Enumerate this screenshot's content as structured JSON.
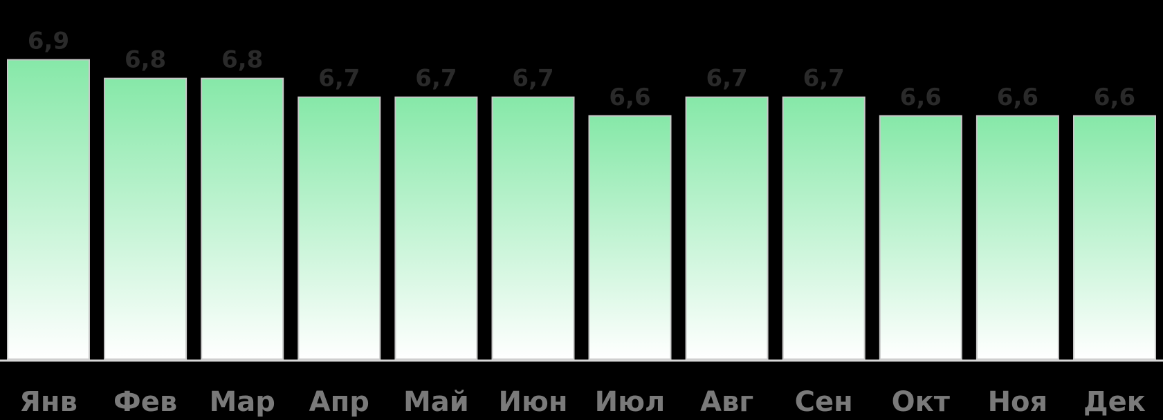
{
  "chart_data": {
    "type": "bar",
    "title": "",
    "xlabel": "",
    "ylabel": "",
    "categories": [
      "Янв",
      "Фев",
      "Мар",
      "Апр",
      "Май",
      "Июн",
      "Июл",
      "Авг",
      "Сен",
      "Окт",
      "Ноя",
      "Дек"
    ],
    "values": [
      6.9,
      6.8,
      6.8,
      6.7,
      6.7,
      6.7,
      6.6,
      6.7,
      6.7,
      6.6,
      6.6,
      6.6
    ],
    "value_labels": [
      "6,9",
      "6,8",
      "6,8",
      "6,7",
      "6,7",
      "6,7",
      "6,6",
      "6,7",
      "6,7",
      "6,6",
      "6,6",
      "6,6"
    ],
    "ylim": [
      5.3,
      6.95
    ],
    "grid": false,
    "legend": "none",
    "colors": {
      "background": "#000000",
      "bar_top": "#86e8a8",
      "bar_bottom": "#ffffff",
      "bar_outline": "#c8c8c8",
      "baseline": "#d8d8d8",
      "value_text": "#2a2a2a",
      "category_text": "#7a7a7a"
    }
  }
}
